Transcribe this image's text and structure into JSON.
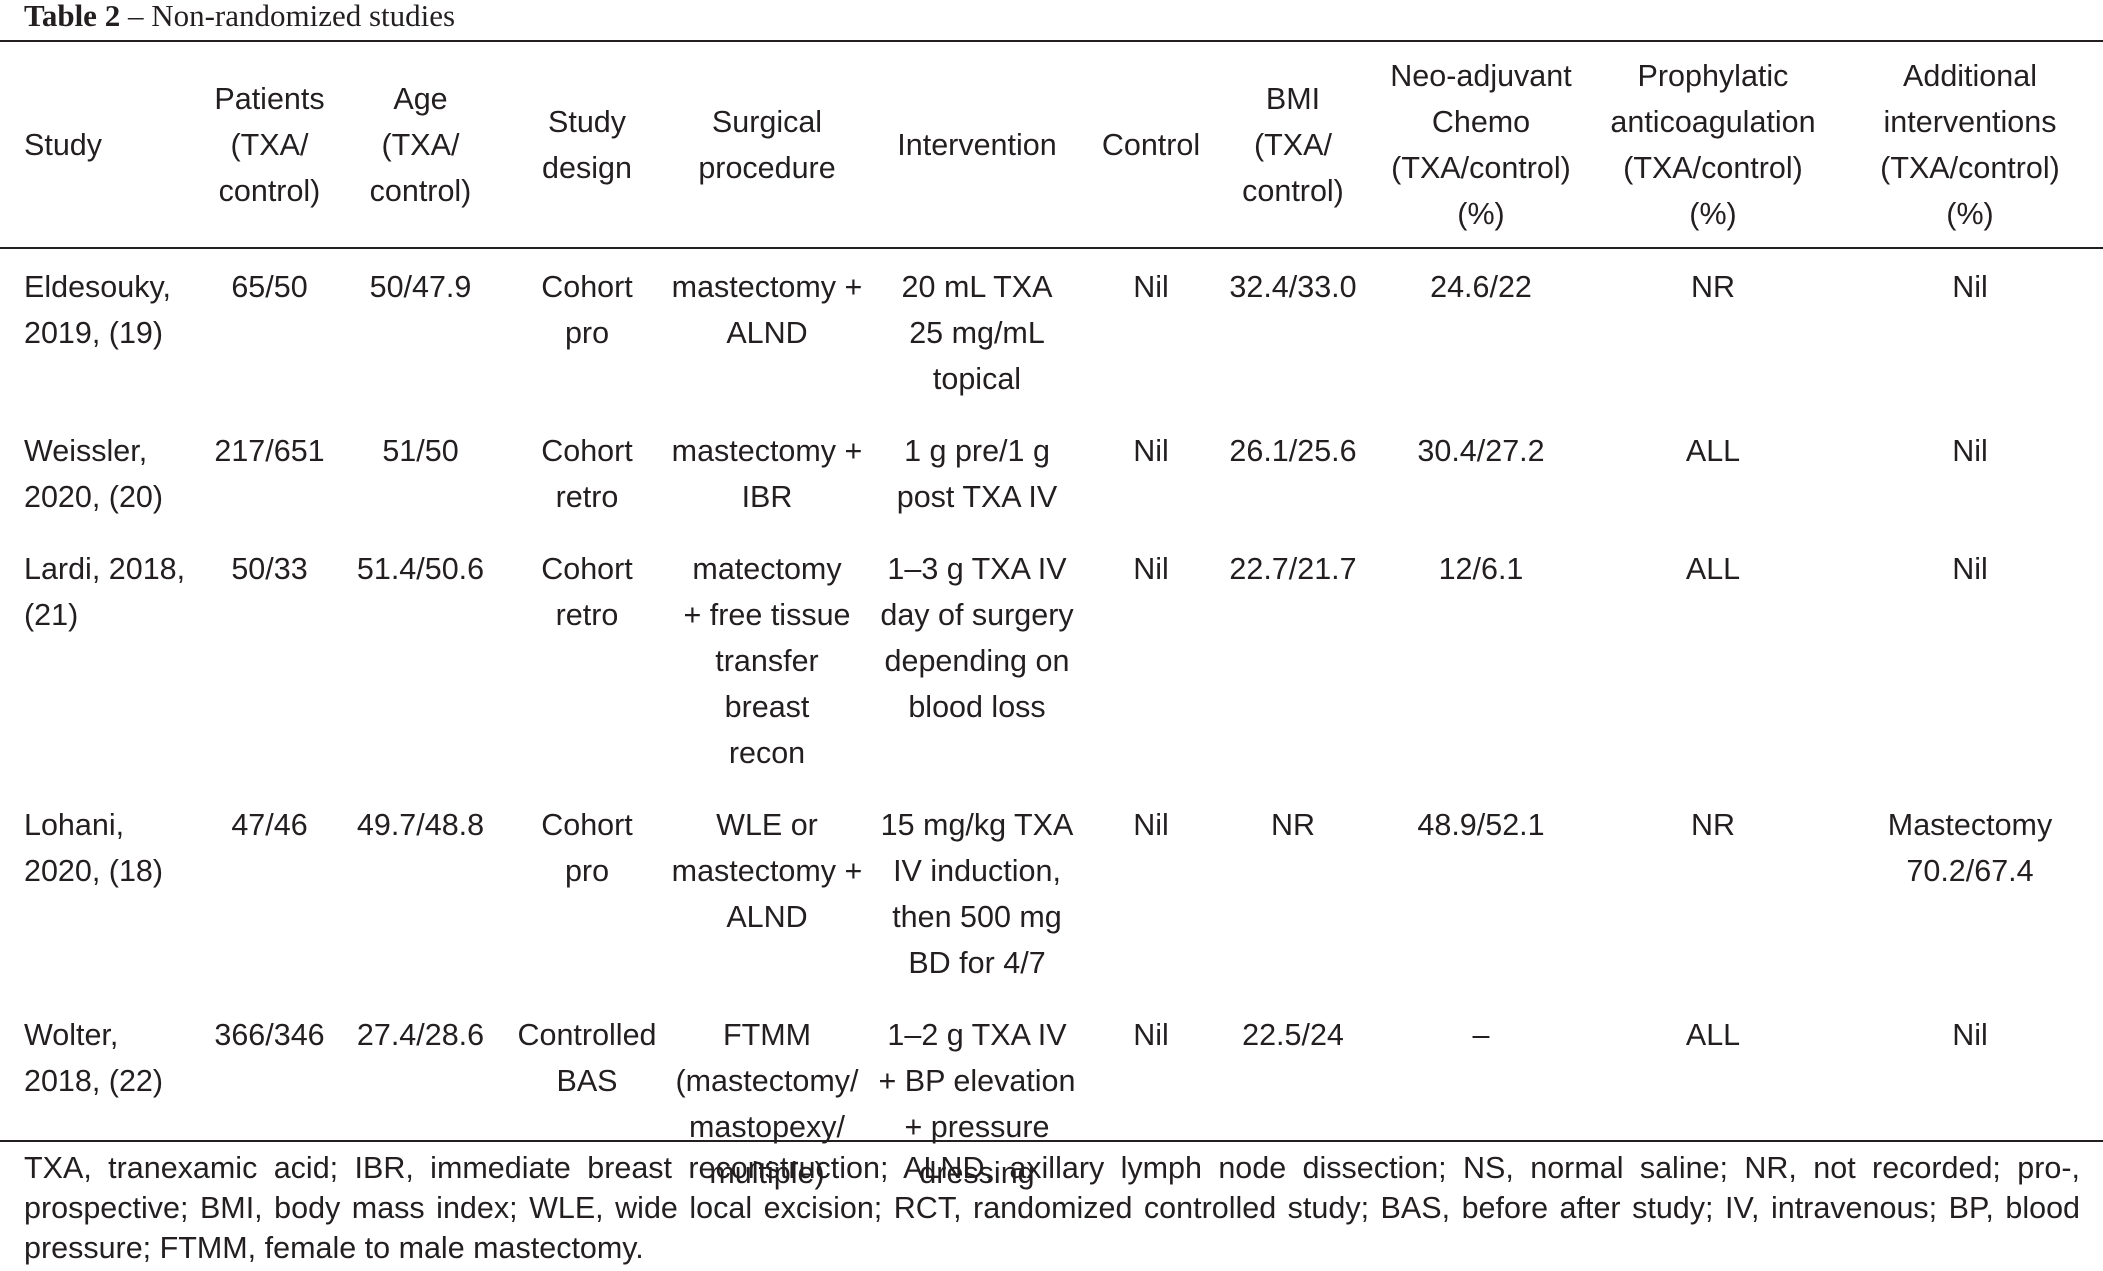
{
  "caption": {
    "label": "Table 2",
    "separator": " – ",
    "title": "Non-randomized studies"
  },
  "columns": [
    "Study",
    "Patients\n(TXA/\ncontrol)",
    "Age\n(TXA/\ncontrol)",
    "Study\ndesign",
    "Surgical\nprocedure",
    "Intervention",
    "Control",
    "BMI\n(TXA/\ncontrol)",
    "Neo-adjuvant\nChemo\n(TXA/control)\n(%)",
    "Prophylatic\nanticoagulation\n(TXA/control)\n(%)",
    "Additional\ninterventions\n(TXA/control)\n(%)"
  ],
  "rows": [
    [
      "Eldesouky,\n2019, (19)",
      "65/50",
      "50/47.9",
      "Cohort\npro",
      "mastectomy +\nALND",
      "20 mL TXA\n25 mg/mL\ntopical",
      "Nil",
      "32.4/33.0",
      "24.6/22",
      "NR",
      "Nil"
    ],
    [
      "Weissler,\n2020, (20)",
      "217/651",
      "51/50",
      "Cohort\nretro",
      "mastectomy +\nIBR",
      "1 g pre/1 g\npost TXA IV",
      "Nil",
      "26.1/25.6",
      "30.4/27.2",
      "ALL",
      "Nil"
    ],
    [
      "Lardi, 2018,\n(21)",
      "50/33",
      "51.4/50.6",
      "Cohort\nretro",
      "matectomy\n+ free tissue\ntransfer breast\nrecon",
      "1–3 g TXA IV\nday of surgery\ndepending on\nblood loss",
      "Nil",
      "22.7/21.7",
      "12/6.1",
      "ALL",
      "Nil"
    ],
    [
      "Lohani,\n2020, (18)",
      "47/46",
      "49.7/48.8",
      "Cohort\npro",
      "WLE or\nmastectomy +\nALND",
      "15 mg/kg TXA\nIV induction,\nthen 500 mg\nBD for 4/7",
      "Nil",
      "NR",
      "48.9/52.1",
      "NR",
      "Mastectomy\n70.2/67.4"
    ],
    [
      "Wolter,\n2018, (22)",
      "366/346",
      "27.4/28.6",
      "Controlled\nBAS",
      "FTMM\n(mastectomy/\nmastopexy/\nmultiple)",
      "1–2 g TXA IV\n+ BP elevation\n+ pressure\ndressing",
      "Nil",
      "22.5/24",
      "–",
      "ALL",
      "Nil"
    ]
  ],
  "footnote": "TXA, tranexamic acid; IBR, immediate breast reconstruction; ALND, axillary lymph node dissection; NS, normal saline; NR, not recorded; pro-, prospective; BMI, body mass index; WLE, wide local excision; RCT, randomized controlled study; BAS, before after study; IV, intravenous; BP, blood pressure; FTMM, female to male mastectomy."
}
